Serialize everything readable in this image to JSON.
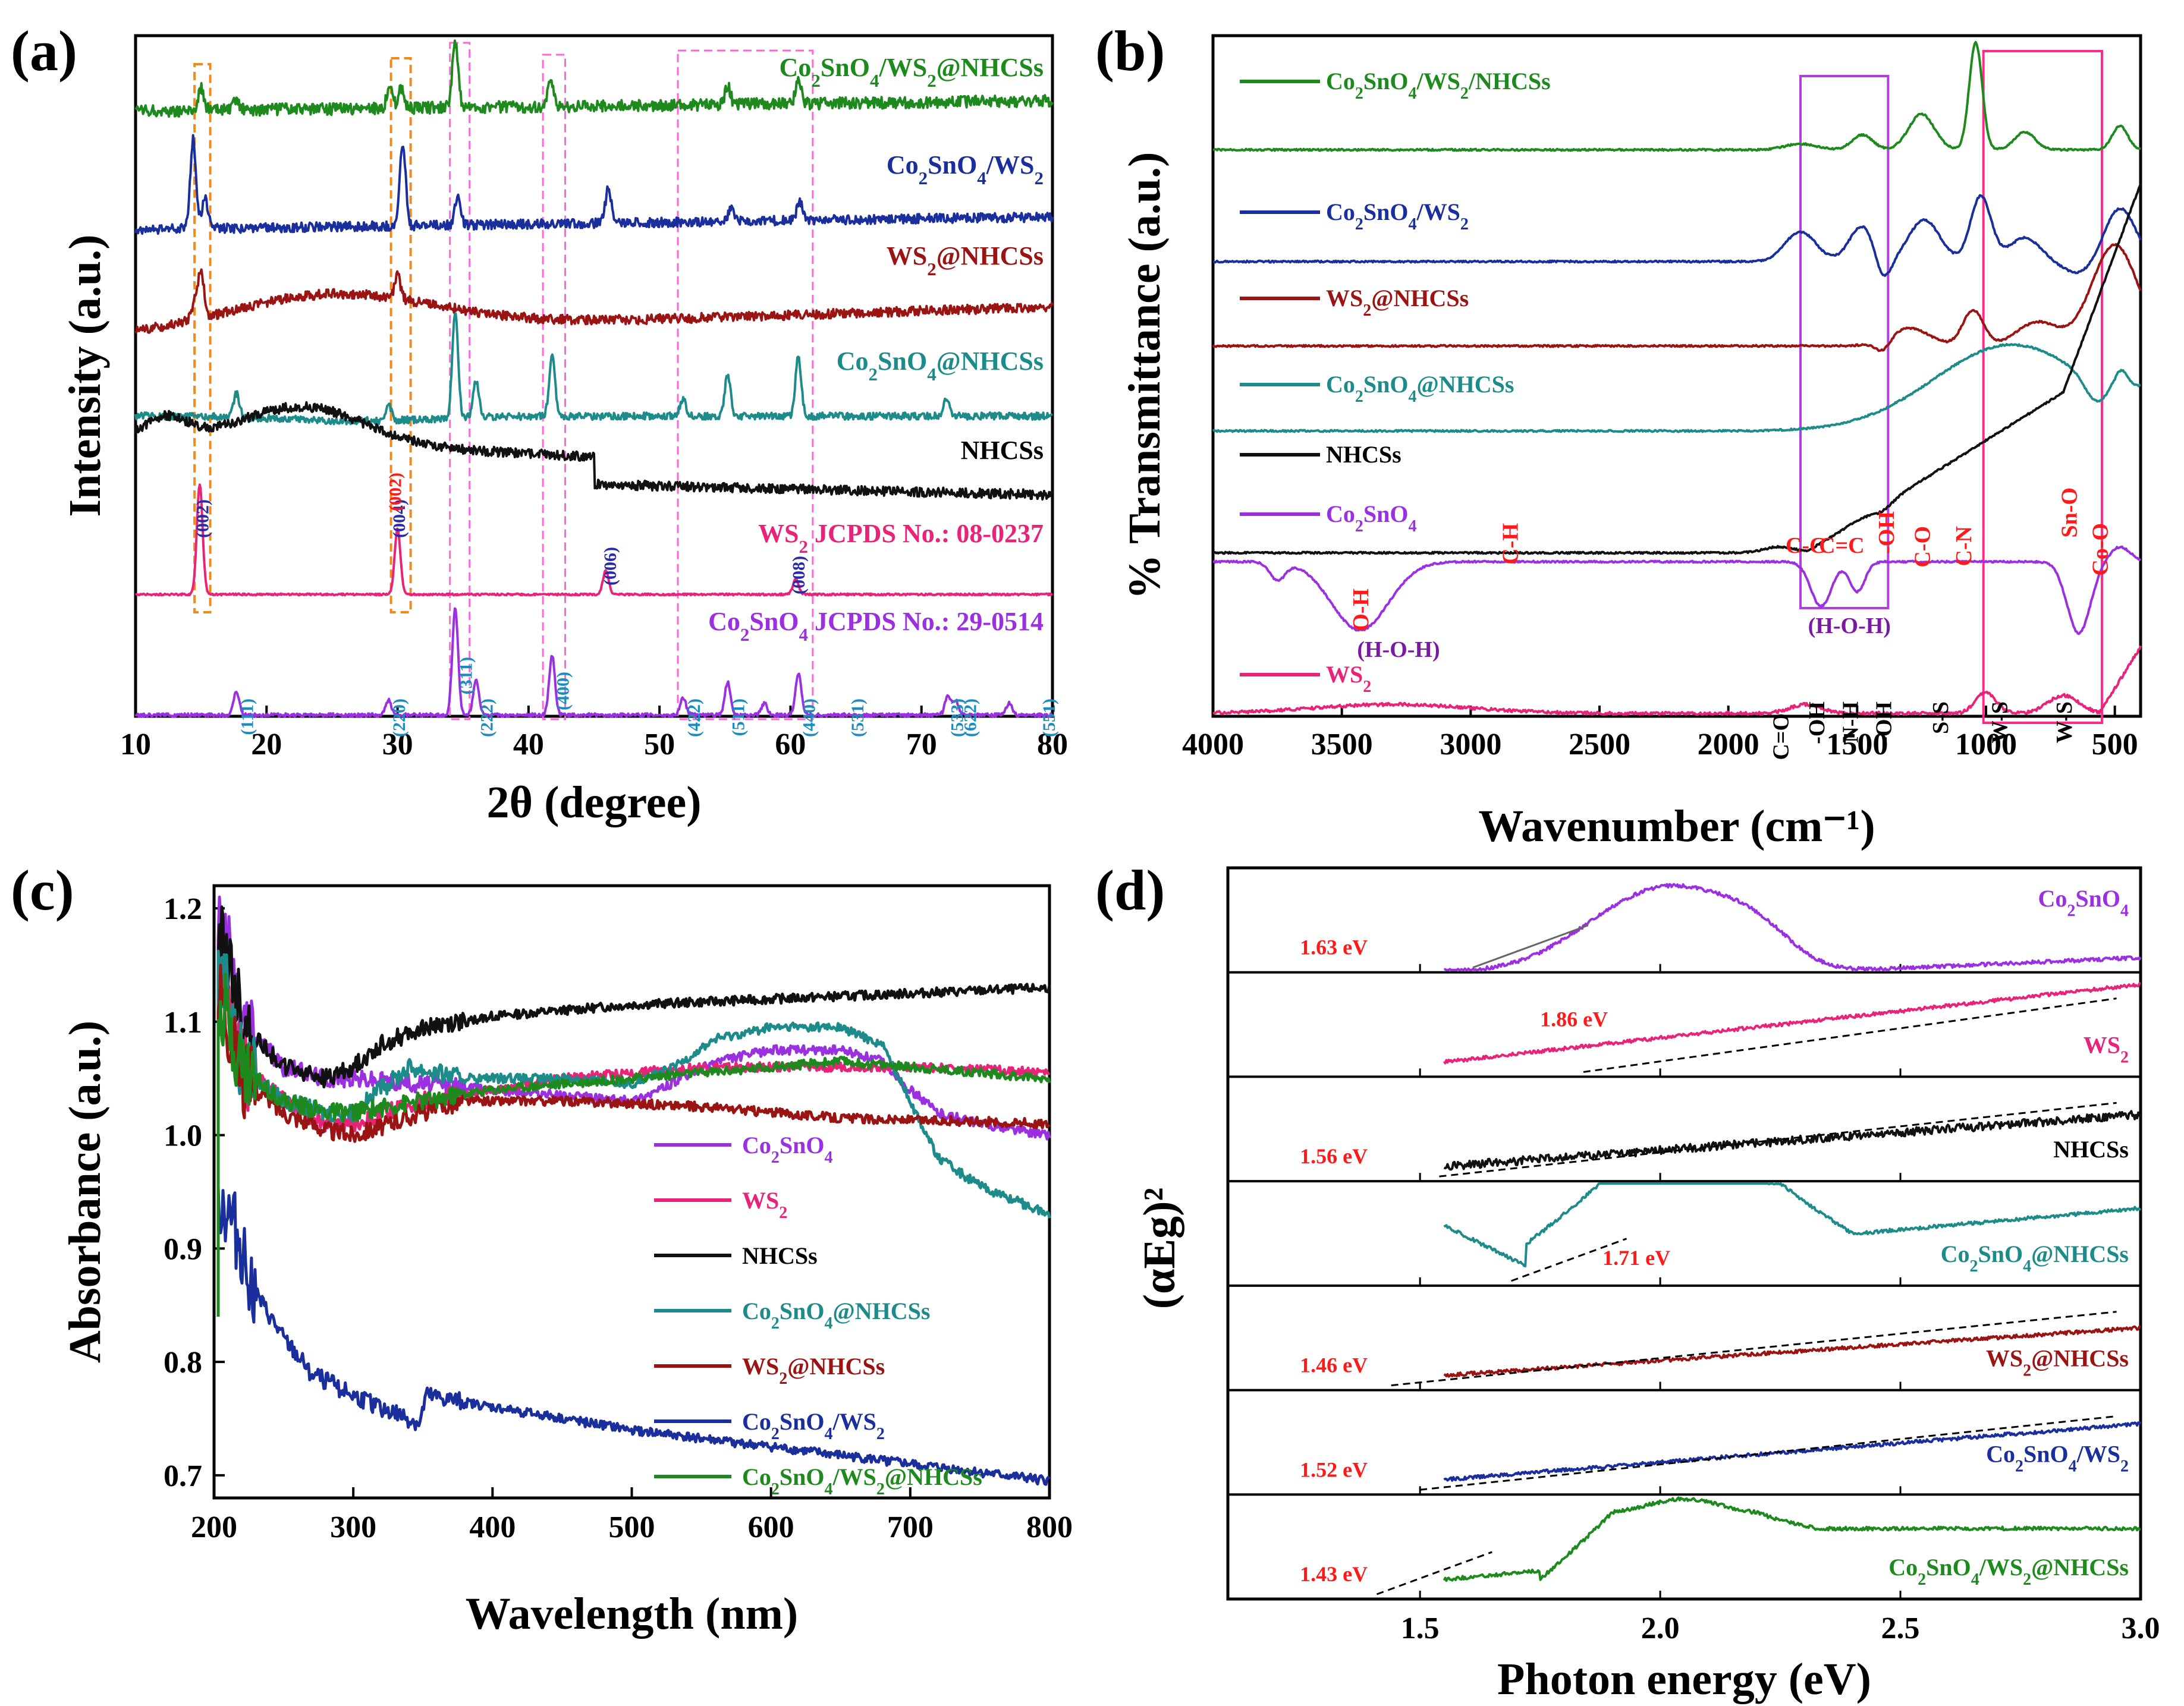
{
  "chart_data": [
    {
      "panel": "(a)",
      "type": "line",
      "title": "",
      "xlabel": "2θ (degree)",
      "ylabel": "Intensity (a.u.)",
      "xlim": [
        10,
        80
      ],
      "xticks": [
        "10",
        "20",
        "30",
        "40",
        "50",
        "60",
        "70",
        "80"
      ],
      "series": [
        {
          "name": "Co2SnO4/WS2@NHCSs",
          "display": [
            "Co",
            "2",
            "SnO",
            "4",
            "/WS",
            "2",
            "@NHCSs"
          ],
          "color": "#1e8a1e",
          "peaks": [
            15.0,
            17.7,
            29.4,
            30.3,
            34.4,
            41.7,
            55.2,
            60.6
          ]
        },
        {
          "name": "Co2SnO4/WS2",
          "display": [
            "Co",
            "2",
            "SnO",
            "4",
            "/WS",
            "2"
          ],
          "color": "#1a2e9c",
          "peaks": [
            14.4,
            15.3,
            30.4,
            34.6,
            46.1,
            55.5,
            60.7
          ]
        },
        {
          "name": "WS2@NHCSs",
          "display": [
            "WS",
            "2",
            "@NHCSs"
          ],
          "color": "#9a1414",
          "peaks": [
            14.5,
            15.0,
            30.0
          ]
        },
        {
          "name": "Co2SnO4@NHCSs",
          "display": [
            "Co",
            "2",
            "SnO",
            "4",
            "@NHCSs"
          ],
          "color": "#1e8b8b",
          "peaks": [
            17.7,
            29.3,
            34.4,
            36.0,
            41.8,
            51.8,
            55.2,
            60.6,
            71.9
          ]
        },
        {
          "name": "NHCSs",
          "display": [
            "NHCSs"
          ],
          "color": "#111111",
          "peaks": []
        },
        {
          "name": "WS2 JCPDS No.: 08-0237",
          "display": [
            "WS",
            "2",
            " JCPDS No.: 08-0237"
          ],
          "color": "#e8237a",
          "peaks": [
            14.9,
            30.0,
            45.9,
            60.4
          ]
        },
        {
          "name": "Co2SnO4 JCPDS No.: 29-0514",
          "display": [
            "Co",
            "2",
            "SnO",
            "4",
            " JCPDS No.: 29-0514"
          ],
          "color": "#9b30e0",
          "peaks": [
            17.7,
            29.3,
            34.4,
            36.0,
            41.8,
            51.8,
            55.2,
            58.0,
            60.6,
            72.0,
            72.6,
            76.7
          ]
        }
      ],
      "annotations": {
        "ws2_planes": [
          {
            "x": 14.3,
            "text": "(002)"
          },
          {
            "x": 29.3,
            "text": "(004)"
          },
          {
            "x": 45.4,
            "text": "(006)"
          },
          {
            "x": 59.8,
            "text": "(008)"
          }
        ],
        "carbon_plane": {
          "x": 29.0,
          "text": "(002)"
        },
        "co2sno4_planes": [
          {
            "x": 17.7,
            "text": "(111)"
          },
          {
            "x": 29.3,
            "text": "(220)"
          },
          {
            "x": 34.4,
            "text": "(311)"
          },
          {
            "x": 36.0,
            "text": "(222)"
          },
          {
            "x": 41.8,
            "text": "(400)"
          },
          {
            "x": 51.8,
            "text": "(422)"
          },
          {
            "x": 55.2,
            "text": "(511)"
          },
          {
            "x": 60.6,
            "text": "(440)"
          },
          {
            "x": 64.3,
            "text": "(531)"
          },
          {
            "x": 71.9,
            "text": "(533)"
          },
          {
            "x": 72.9,
            "text": "(622)"
          },
          {
            "x": 78.9,
            "text": "(551)"
          }
        ]
      }
    },
    {
      "panel": "(b)",
      "type": "line",
      "xlabel": "Wavenumber (cm⁻¹)",
      "ylabel": "% Transmittance (a.u.)",
      "xlim": [
        4000,
        400
      ],
      "xticks": [
        "4000",
        "3500",
        "3000",
        "2500",
        "2000",
        "1500",
        "1000",
        "500"
      ],
      "series": [
        {
          "name": "Co2SnO4/WS2/NHCSs",
          "display": [
            "Co",
            "2",
            "SnO",
            "4",
            "/WS",
            "2",
            "/NHCSs"
          ],
          "color": "#1e8a1e"
        },
        {
          "name": "Co2SnO4/WS2",
          "display": [
            "Co",
            "2",
            "SnO",
            "4",
            "/WS",
            "2"
          ],
          "color": "#1a2e9c"
        },
        {
          "name": "WS2@NHCSs",
          "display": [
            "WS",
            "2",
            "@NHCSs"
          ],
          "color": "#9a1414"
        },
        {
          "name": "Co2SnO4@NHCSs",
          "display": [
            "Co",
            "2",
            "SnO",
            "4",
            "@NHCSs"
          ],
          "color": "#1e8b8b"
        },
        {
          "name": "NHCSs",
          "display": [
            "NHCSs"
          ],
          "color": "#111111"
        },
        {
          "name": "Co2SnO4",
          "display": [
            "Co",
            "2",
            "SnO",
            "4"
          ],
          "color": "#9b30e0"
        },
        {
          "name": "WS2",
          "display": [
            "WS",
            "2"
          ],
          "color": "#e8237a"
        }
      ],
      "annotations": {
        "red_labels": [
          {
            "x": 3430,
            "text": "O-H"
          },
          {
            "x": 2850,
            "text": "C-H"
          },
          {
            "x": 1700,
            "text": "C-C"
          },
          {
            "x": 1560,
            "text": "C=C"
          },
          {
            "x": 1390,
            "text": "-OH"
          },
          {
            "x": 1250,
            "text": "C-O"
          },
          {
            "x": 1090,
            "text": "C-N"
          },
          {
            "x": 680,
            "text": "Sn-O"
          },
          {
            "x": 560,
            "text": "Co-O"
          }
        ],
        "purple_labels": [
          {
            "x": 3280,
            "text": "(H-O-H)"
          },
          {
            "x": 1530,
            "text": "(H-O-H)"
          }
        ],
        "black_labels": [
          {
            "x": 1800,
            "text": "C=O"
          },
          {
            "x": 1660,
            "text": "-OH"
          },
          {
            "x": 1530,
            "text": "N-H"
          },
          {
            "x": 1400,
            "text": "-OH"
          },
          {
            "x": 1180,
            "text": "S-S"
          },
          {
            "x": 950,
            "text": "W-S"
          },
          {
            "x": 700,
            "text": "W-S"
          }
        ]
      }
    },
    {
      "panel": "(c)",
      "type": "line",
      "xlabel": "Wavelength (nm)",
      "ylabel": "Absorbance (a.u.)",
      "xlim": [
        200,
        800
      ],
      "ylim": [
        0.68,
        1.22
      ],
      "xticks": [
        "200",
        "300",
        "400",
        "500",
        "600",
        "700",
        "800"
      ],
      "yticks": [
        "0.7",
        "0.8",
        "0.9",
        "1.0",
        "1.1",
        "1.2"
      ],
      "series": [
        {
          "name": "Co2SnO4",
          "display": [
            "Co",
            "2",
            "SnO",
            "4"
          ],
          "color": "#9b30e0",
          "x": [
            205,
            220,
            250,
            280,
            300,
            350,
            400,
            450,
            500,
            520,
            560,
            600,
            650,
            680,
            700,
            720,
            750,
            800
          ],
          "values": [
            1.2,
            1.1,
            1.06,
            1.05,
            1.05,
            1.045,
            1.04,
            1.035,
            1.03,
            1.04,
            1.065,
            1.075,
            1.075,
            1.065,
            1.04,
            1.02,
            1.01,
            1.0
          ]
        },
        {
          "name": "WS2",
          "display": [
            "WS",
            "2"
          ],
          "color": "#e8237a",
          "x": [
            205,
            220,
            250,
            280,
            300,
            350,
            400,
            450,
            500,
            550,
            600,
            650,
            700,
            750,
            800
          ],
          "values": [
            1.15,
            1.06,
            1.03,
            1.01,
            1.01,
            1.03,
            1.04,
            1.05,
            1.055,
            1.06,
            1.06,
            1.06,
            1.06,
            1.058,
            1.055
          ]
        },
        {
          "name": "NHCSs",
          "display": [
            "NHCSs"
          ],
          "color": "#111111",
          "x": [
            205,
            220,
            250,
            280,
            300,
            320,
            350,
            380,
            400,
            500,
            600,
            700,
            800
          ],
          "values": [
            1.18,
            1.1,
            1.06,
            1.05,
            1.06,
            1.08,
            1.095,
            1.1,
            1.105,
            1.115,
            1.12,
            1.125,
            1.13
          ]
        },
        {
          "name": "Co2SnO4@NHCSs",
          "display": [
            "Co",
            "2",
            "SnO",
            "4",
            "@NHCSs"
          ],
          "color": "#1e8b8b",
          "x": [
            205,
            220,
            250,
            280,
            300,
            340,
            380,
            420,
            460,
            500,
            530,
            560,
            600,
            650,
            680,
            700,
            720,
            750,
            800
          ],
          "values": [
            1.15,
            1.06,
            1.03,
            1.02,
            1.02,
            1.06,
            1.05,
            1.05,
            1.05,
            1.045,
            1.06,
            1.085,
            1.095,
            1.095,
            1.08,
            1.03,
            0.98,
            0.955,
            0.93
          ]
        },
        {
          "name": "WS2@NHCSs",
          "display": [
            "WS",
            "2",
            "@NHCSs"
          ],
          "color": "#9a1414",
          "x": [
            205,
            220,
            250,
            280,
            300,
            350,
            380,
            400,
            450,
            500,
            550,
            600,
            650,
            700,
            750,
            800
          ],
          "values": [
            1.13,
            1.05,
            1.02,
            1.005,
            1.0,
            1.02,
            1.03,
            1.03,
            1.03,
            1.028,
            1.025,
            1.02,
            1.015,
            1.013,
            1.012,
            1.01
          ]
        },
        {
          "name": "Co2SnO4/WS2",
          "display": [
            "Co",
            "2",
            "SnO",
            "4",
            "/WS",
            "2"
          ],
          "color": "#1a2e9c",
          "x": [
            205,
            210,
            220,
            230,
            250,
            270,
            300,
            330,
            348,
            352,
            400,
            500,
            600,
            700,
            800
          ],
          "values": [
            0.94,
            0.93,
            0.9,
            0.86,
            0.82,
            0.79,
            0.77,
            0.755,
            0.745,
            0.77,
            0.76,
            0.74,
            0.725,
            0.71,
            0.695
          ]
        },
        {
          "name": "Co2SnO4/WS2@NHCSs",
          "display": [
            "Co",
            "2",
            "SnO",
            "4",
            "/WS",
            "2",
            "@NHCSs"
          ],
          "color": "#1e8a1e",
          "x": [
            205,
            220,
            250,
            280,
            300,
            350,
            400,
            450,
            500,
            550,
            600,
            650,
            700,
            750,
            800
          ],
          "values": [
            1.12,
            1.06,
            1.03,
            1.02,
            1.02,
            1.03,
            1.04,
            1.045,
            1.05,
            1.055,
            1.06,
            1.065,
            1.06,
            1.055,
            1.05
          ]
        }
      ]
    },
    {
      "panel": "(d)",
      "type": "line",
      "xlabel": "Photon energy (eV)",
      "ylabel": "(αEg)²",
      "xlim": [
        1.1,
        3.0
      ],
      "xticks": [
        "1.5",
        "2.0",
        "2.5",
        "3.0"
      ],
      "subplots": [
        {
          "name": "Co2SnO4",
          "display": [
            "Co",
            "2",
            "SnO",
            "4"
          ],
          "color": "#9b30e0",
          "band_gap": "1.63 eV",
          "eg": 1.63
        },
        {
          "name": "WS2",
          "display": [
            "WS",
            "2"
          ],
          "color": "#e8237a",
          "band_gap": "1.86 eV",
          "eg": 1.86
        },
        {
          "name": "NHCSs",
          "display": [
            "NHCSs"
          ],
          "color": "#111111",
          "band_gap": "1.56 eV",
          "eg": 1.56
        },
        {
          "name": "Co2SnO4@NHCSs",
          "display": [
            "Co",
            "2",
            "SnO",
            "4",
            "@NHCSs"
          ],
          "color": "#1e8b8b",
          "band_gap": "1.71 eV",
          "eg": 1.71
        },
        {
          "name": "WS2@NHCSs",
          "display": [
            "WS",
            "2",
            "@NHCSs"
          ],
          "color": "#9a1414",
          "band_gap": "1.46 eV",
          "eg": 1.46
        },
        {
          "name": "Co2SnO4/WS2",
          "display": [
            "Co",
            "2",
            "SnO",
            "4",
            "/WS",
            "2"
          ],
          "color": "#1a2e9c",
          "band_gap": "1.52 eV",
          "eg": 1.52
        },
        {
          "name": "Co2SnO4/WS2@NHCSs",
          "display": [
            "Co",
            "2",
            "SnO",
            "4",
            "/WS",
            "2",
            "@NHCSs"
          ],
          "color": "#1e8a1e",
          "band_gap": "1.43 eV",
          "eg": 1.43
        }
      ]
    }
  ]
}
